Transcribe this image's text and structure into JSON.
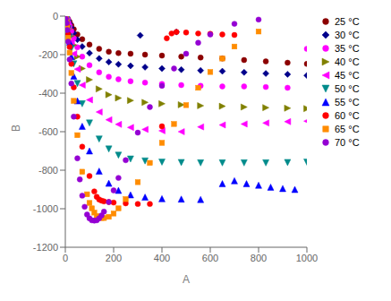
{
  "chart_data": {
    "type": "scatter",
    "xlabel": "A",
    "ylabel": "B",
    "xlim": [
      0,
      1000
    ],
    "ylim": [
      -1200,
      0
    ],
    "xticks": [
      0,
      200,
      400,
      600,
      800,
      1000
    ],
    "yticks": [
      0,
      -200,
      -400,
      -600,
      -800,
      -1000,
      -1200
    ],
    "grid": false,
    "legend": "right",
    "series": [
      {
        "name": "25 °C",
        "color": "#8B0000",
        "marker": "circle",
        "x": [
          2,
          5,
          8,
          12,
          18,
          25,
          35,
          50,
          70,
          100,
          140,
          180,
          220,
          270,
          330,
          400,
          480,
          560,
          650,
          740,
          830,
          920,
          1000
        ],
        "values": [
          -2,
          -5,
          -10,
          -18,
          -30,
          -48,
          -68,
          -95,
          -120,
          -148,
          -170,
          -185,
          -192,
          -195,
          -200,
          -205,
          -210,
          -215,
          -220,
          -228,
          -235,
          -242,
          -248
        ]
      },
      {
        "name": "30 °C",
        "color": "#00008B",
        "marker": "diamond",
        "x": [
          2,
          5,
          8,
          12,
          18,
          25,
          35,
          50,
          70,
          100,
          140,
          180,
          220,
          270,
          330,
          400,
          480,
          560,
          650,
          740,
          830,
          920,
          1000,
          310,
          460
        ],
        "values": [
          -3,
          -7,
          -13,
          -22,
          -38,
          -60,
          -88,
          -122,
          -158,
          -192,
          -220,
          -238,
          -250,
          -258,
          -265,
          -272,
          -278,
          -282,
          -286,
          -292,
          -298,
          -302,
          -308,
          -100,
          -82
        ]
      },
      {
        "name": "35 °C",
        "color": "#FF00FF",
        "marker": "circle",
        "x": [
          2,
          5,
          8,
          12,
          18,
          25,
          35,
          50,
          70,
          100,
          140,
          180,
          220,
          270,
          330,
          400,
          480,
          560,
          650,
          740,
          830,
          920,
          1000
        ],
        "values": [
          -4,
          -9,
          -17,
          -30,
          -50,
          -78,
          -115,
          -162,
          -210,
          -255,
          -292,
          -315,
          -328,
          -338,
          -345,
          -352,
          -358,
          -362,
          -365,
          -365,
          -368,
          -372,
          -170
        ]
      },
      {
        "name": "40 °C",
        "color": "#808000",
        "marker": "triangle-right",
        "x": [
          2,
          5,
          8,
          12,
          18,
          25,
          35,
          50,
          70,
          100,
          140,
          180,
          220,
          270,
          330,
          400,
          480,
          560,
          650,
          740,
          830,
          920,
          1000
        ],
        "values": [
          -5,
          -12,
          -22,
          -40,
          -65,
          -102,
          -150,
          -210,
          -272,
          -330,
          -378,
          -408,
          -425,
          -438,
          -448,
          -455,
          -460,
          -465,
          -468,
          -472,
          -475,
          -478,
          -480
        ]
      },
      {
        "name": "45 °C",
        "color": "#FF00FF",
        "marker": "triangle-left",
        "x": [
          2,
          5,
          8,
          12,
          18,
          25,
          35,
          50,
          70,
          100,
          140,
          180,
          220,
          270,
          330,
          400,
          480,
          560,
          650,
          740,
          830,
          920,
          1000
        ],
        "values": [
          -6,
          -15,
          -28,
          -52,
          -85,
          -132,
          -195,
          -275,
          -358,
          -435,
          -498,
          -538,
          -562,
          -578,
          -588,
          -595,
          -600,
          -575,
          -565,
          -560,
          -555,
          -548,
          -545
        ]
      },
      {
        "name": "50 °C",
        "color": "#008B8B",
        "marker": "triangle-down",
        "x": [
          2,
          5,
          8,
          12,
          18,
          25,
          35,
          50,
          70,
          100,
          140,
          180,
          220,
          270,
          330,
          400,
          480,
          560,
          650,
          740,
          830,
          920,
          1000
        ],
        "values": [
          -7,
          -18,
          -35,
          -65,
          -108,
          -168,
          -248,
          -350,
          -455,
          -555,
          -638,
          -690,
          -722,
          -742,
          -752,
          -758,
          -760,
          -762,
          -762,
          -762,
          -762,
          -760,
          -758
        ]
      },
      {
        "name": "55 °C",
        "color": "#0000FF",
        "marker": "triangle-up",
        "x": [
          2,
          5,
          8,
          12,
          18,
          25,
          35,
          50,
          70,
          100,
          140,
          180,
          220,
          270,
          330,
          400,
          480,
          560,
          650,
          700,
          750,
          800,
          850,
          900,
          950
        ],
        "values": [
          -9,
          -22,
          -44,
          -80,
          -135,
          -210,
          -312,
          -440,
          -572,
          -700,
          -805,
          -868,
          -905,
          -928,
          -940,
          -948,
          -950,
          -952,
          -870,
          -855,
          -870,
          -878,
          -888,
          -895,
          -900
        ]
      },
      {
        "name": "60 °C",
        "color": "#FF0000",
        "marker": "circle",
        "x": [
          2,
          5,
          8,
          12,
          18,
          25,
          35,
          50,
          70,
          100,
          120,
          130,
          140,
          150,
          160,
          180,
          200,
          250,
          300,
          350,
          400,
          420,
          440,
          460,
          500,
          550,
          600,
          650,
          700
        ],
        "values": [
          -10,
          -26,
          -52,
          -95,
          -160,
          -248,
          -370,
          -522,
          -678,
          -830,
          -910,
          -938,
          -952,
          -958,
          -962,
          -965,
          -968,
          -972,
          -975,
          -975,
          -572,
          -115,
          -90,
          -82,
          -85,
          -90,
          -92,
          -95,
          -98
        ]
      },
      {
        "name": "65 °C",
        "color": "#FF8C00",
        "marker": "square",
        "x": [
          2,
          5,
          8,
          12,
          18,
          25,
          35,
          50,
          70,
          90,
          100,
          110,
          120,
          130,
          140,
          150,
          160,
          180,
          200,
          220,
          250,
          300,
          350,
          400,
          450,
          500,
          550,
          600,
          650,
          700,
          800
        ],
        "values": [
          -12,
          -30,
          -62,
          -112,
          -190,
          -295,
          -440,
          -618,
          -808,
          -925,
          -970,
          -998,
          -1020,
          -1038,
          -1045,
          -1048,
          -1048,
          -1042,
          -1025,
          -998,
          -950,
          -862,
          -762,
          -658,
          -560,
          -462,
          -372,
          -290,
          -220,
          -158,
          -80
        ]
      },
      {
        "name": "70 °C",
        "color": "#9400D3",
        "marker": "circle",
        "x": [
          2,
          5,
          8,
          12,
          18,
          25,
          35,
          50,
          60,
          70,
          80,
          90,
          100,
          110,
          120,
          130,
          140,
          150,
          160,
          180,
          200,
          220,
          250,
          300,
          350,
          400,
          450,
          500,
          550,
          600,
          700,
          800
        ],
        "values": [
          -14,
          -36,
          -72,
          -132,
          -225,
          -350,
          -522,
          -738,
          -848,
          -932,
          -990,
          -1030,
          -1050,
          -1060,
          -1062,
          -1060,
          -1050,
          -1035,
          -1015,
          -965,
          -905,
          -840,
          -748,
          -605,
          -472,
          -362,
          -272,
          -195,
          -138,
          -95,
          -40,
          -18
        ]
      }
    ]
  }
}
